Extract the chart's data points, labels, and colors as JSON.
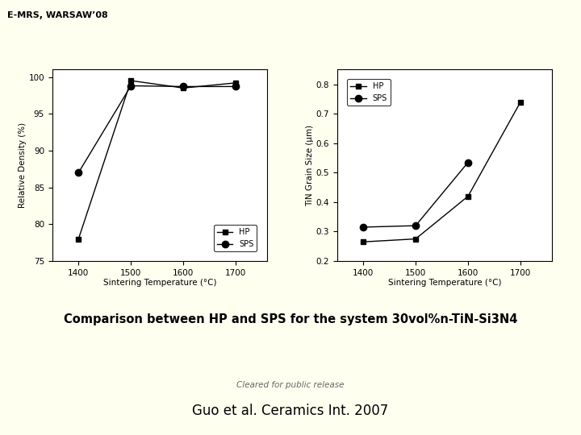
{
  "temps": [
    1400,
    1500,
    1600,
    1700
  ],
  "density_hp": [
    78.0,
    99.5,
    98.5,
    99.2
  ],
  "density_sps": [
    87.0,
    98.8,
    98.7,
    98.7
  ],
  "grain_hp": [
    0.265,
    0.275,
    0.42,
    0.74
  ],
  "grain_sps": [
    0.315,
    0.32,
    0.535,
    null
  ],
  "bg_color": "#fffff0",
  "header_text": "E-MRS, WARSAW’08",
  "title_text": "Comparison between HP and SPS for the system 30vol%n-TiN-Si3N4",
  "subtitle_text": "Cleared for public release",
  "ref_text": "Guo et al. Ceramics Int. 2007",
  "left_ylabel": "Relative Density (%)",
  "left_xlabel": "Sintering Temperature (°C)",
  "right_ylabel": "TiN Grain Size (µm)",
  "right_xlabel": "Sintering Temperature (°C)",
  "left_ylim": [
    75,
    101
  ],
  "left_yticks": [
    75,
    80,
    85,
    90,
    95,
    100
  ],
  "right_ylim": [
    0.2,
    0.85
  ],
  "right_yticks": [
    0.2,
    0.3,
    0.4,
    0.5,
    0.6,
    0.7,
    0.8
  ],
  "xticks": [
    1400,
    1500,
    1600,
    1700
  ],
  "header_bg": "#fffde0"
}
